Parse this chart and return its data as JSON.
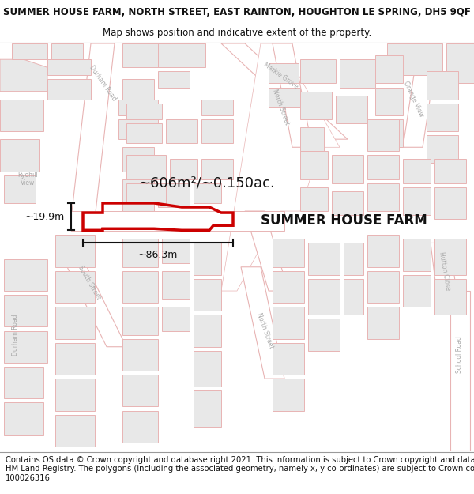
{
  "title_line1": "SUMMER HOUSE FARM, NORTH STREET, EAST RAINTON, HOUGHTON LE SPRING, DH5 9QF",
  "title_line2": "Map shows position and indicative extent of the property.",
  "footer_lines": [
    "Contains OS data © Crown copyright and database right 2021. This information is subject to Crown copyright and database rights 2023 and is reproduced with the permission of",
    "HM Land Registry. The polygons (including the associated geometry, namely x, y co-ordinates) are subject to Crown copyright and database rights 2023 Ordnance Survey",
    "100026316."
  ],
  "map_bg": "#f8f8f8",
  "road_fill": "#ffffff",
  "road_outline": "#e8b4b4",
  "building_fill": "#e8e8e8",
  "building_outline": "#e8b4b4",
  "parcel_fill": "#ffffff",
  "parcel_outline": "#e8b4b4",
  "highlight_color": "#cc0000",
  "highlight_fill": "none",
  "label_text": "SUMMER HOUSE FARM",
  "area_label": "~606m²/~0.150ac.",
  "dim_width": "~86.3m",
  "dim_height": "~19.9m",
  "title_fontsize": 8.5,
  "subtitle_fontsize": 8.5,
  "footer_fontsize": 7.2,
  "label_fontsize": 12,
  "dim_fontsize": 9,
  "area_fontsize": 13
}
